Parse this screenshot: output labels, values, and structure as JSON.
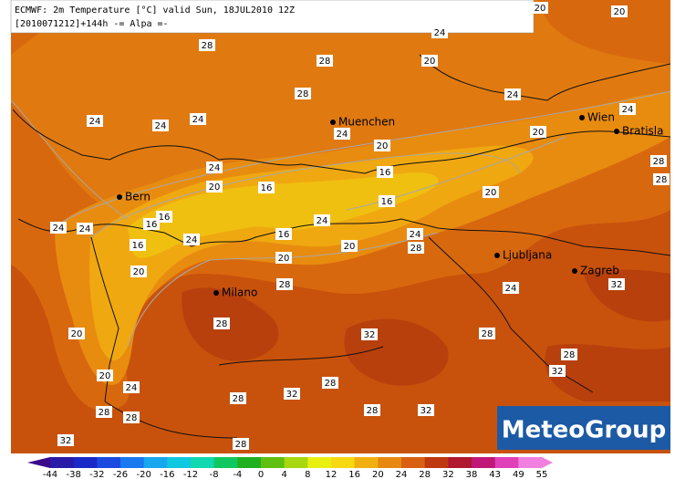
{
  "header": {
    "line1": "ECMWF: 2m Temperature [°C] valid Sun, 18JUL2010 12Z",
    "line2": "[2010071212]+144h -= Alpa =-"
  },
  "cities": [
    "Muenchen",
    "Wien",
    "Bratisla",
    "Bern",
    "Ljubljana",
    "Zagreb",
    "Milano"
  ],
  "contour_labels": [
    20,
    20,
    24,
    28,
    28,
    20,
    28,
    24,
    24,
    24,
    24,
    24,
    24,
    20,
    20,
    24,
    16,
    28,
    20,
    16,
    28,
    20,
    16,
    16,
    16,
    24,
    24,
    24,
    16,
    24,
    24,
    16,
    20,
    28,
    20,
    20,
    28,
    32,
    24,
    28,
    20,
    28,
    32,
    28,
    32,
    20,
    28,
    24,
    32,
    28,
    28,
    28,
    32,
    28,
    32,
    28
  ],
  "colorbar": {
    "ticks": [
      -44,
      -38,
      -32,
      -26,
      -20,
      -16,
      -12,
      -8,
      -4,
      0,
      4,
      8,
      12,
      16,
      20,
      24,
      28,
      32,
      38,
      43,
      49,
      55
    ],
    "colors": [
      "#3a0a8a",
      "#2a1aa8",
      "#1a2ac8",
      "#1a4ae0",
      "#1a78f0",
      "#18a8f0",
      "#10c8e0",
      "#10d8b0",
      "#10c860",
      "#20b020",
      "#60c010",
      "#a8d810",
      "#e8f010",
      "#f8d810",
      "#f0b010",
      "#e88810",
      "#d86010",
      "#c03810",
      "#b01830",
      "#c01878",
      "#e040b8",
      "#f080e0"
    ]
  },
  "logo": "MeteoGroup"
}
